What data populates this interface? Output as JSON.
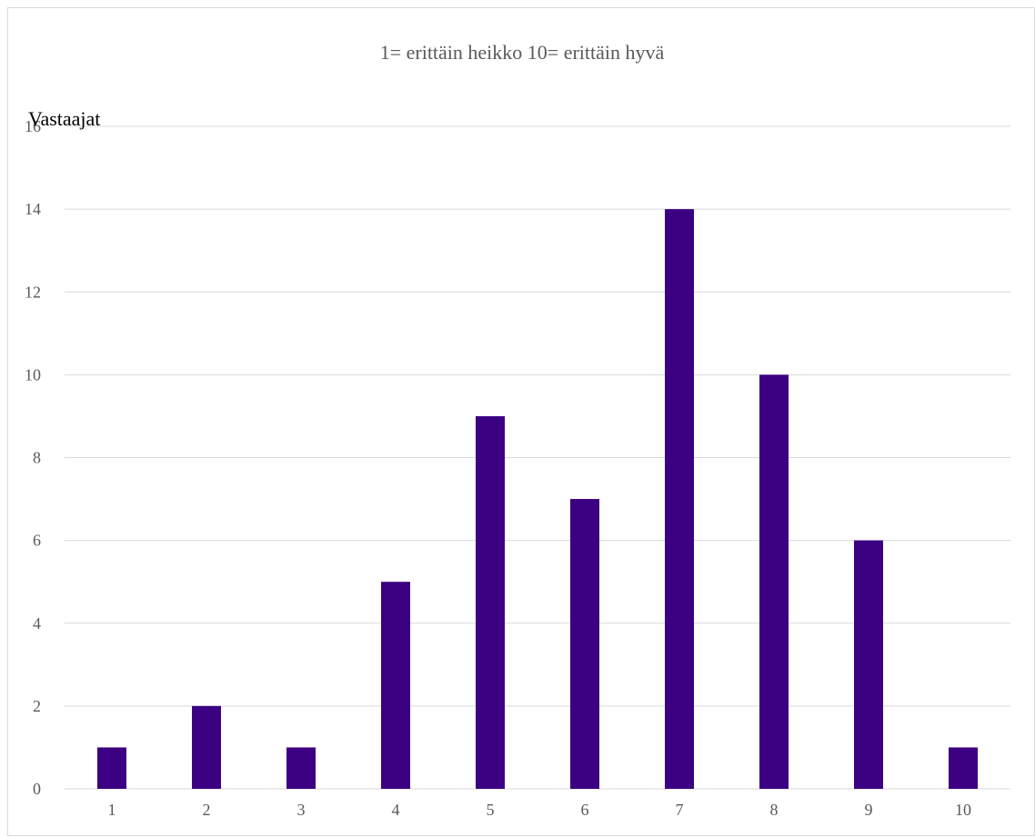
{
  "chart_data": {
    "type": "bar",
    "title": "1= erittäin heikko 10= erittäin hyvä",
    "ylabel": "Vastaajat",
    "xlabel": "",
    "categories": [
      "1",
      "2",
      "3",
      "4",
      "5",
      "6",
      "7",
      "8",
      "9",
      "10"
    ],
    "values": [
      1,
      2,
      1,
      5,
      9,
      7,
      14,
      10,
      6,
      1
    ],
    "ylim": [
      0,
      16
    ],
    "yticks": [
      0,
      2,
      4,
      6,
      8,
      10,
      12,
      14,
      16
    ],
    "grid": true,
    "legend": "none",
    "bar_color": "#3c0082",
    "grid_color": "#d9d9d9",
    "axis_text_color": "#595959"
  }
}
